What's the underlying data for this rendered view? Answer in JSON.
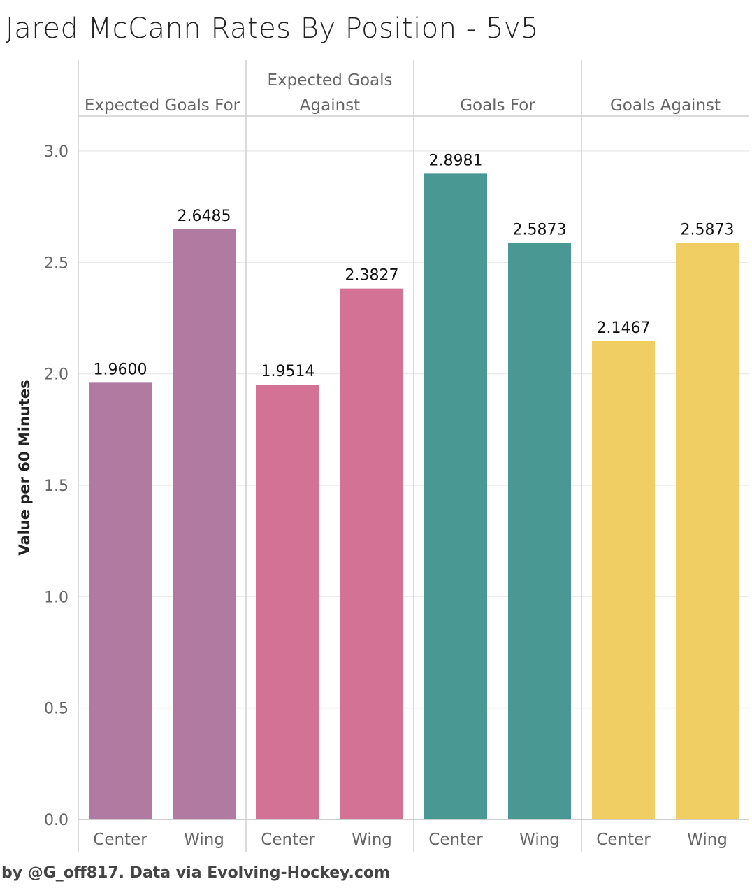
{
  "title": "Jared McCann Rates By Position - 5v5",
  "footer": "by @G_off817. Data via Evolving-Hockey.com",
  "chart_data": {
    "type": "bar",
    "title": "Jared McCann Rates By Position - 5v5",
    "ylabel": "Value per 60 Minutes",
    "ylim": [
      0,
      3.2
    ],
    "yticks": [
      "0.0",
      "0.5",
      "1.0",
      "1.5",
      "2.0",
      "2.5",
      "3.0"
    ],
    "grid": true,
    "categories": [
      "Center",
      "Wing"
    ],
    "panels": [
      {
        "name": "Expected Goals For",
        "title_lines": [
          "Expected Goals For"
        ],
        "color": "#b07aa1",
        "values": [
          1.96,
          2.6485
        ],
        "labels": [
          "1.9600",
          "2.6485"
        ]
      },
      {
        "name": "Expected Goals Against",
        "title_lines": [
          "Expected Goals",
          "Against"
        ],
        "color": "#d37295",
        "values": [
          1.9514,
          2.3827
        ],
        "labels": [
          "1.9514",
          "2.3827"
        ]
      },
      {
        "name": "Goals For",
        "title_lines": [
          "Goals For"
        ],
        "color": "#499894",
        "values": [
          2.8981,
          2.5873
        ],
        "labels": [
          "2.8981",
          "2.5873"
        ]
      },
      {
        "name": "Goals Against",
        "title_lines": [
          "Goals Against"
        ],
        "color": "#f1ce63",
        "values": [
          2.1467,
          2.5873
        ],
        "labels": [
          "2.1467",
          "2.5873"
        ]
      }
    ]
  }
}
